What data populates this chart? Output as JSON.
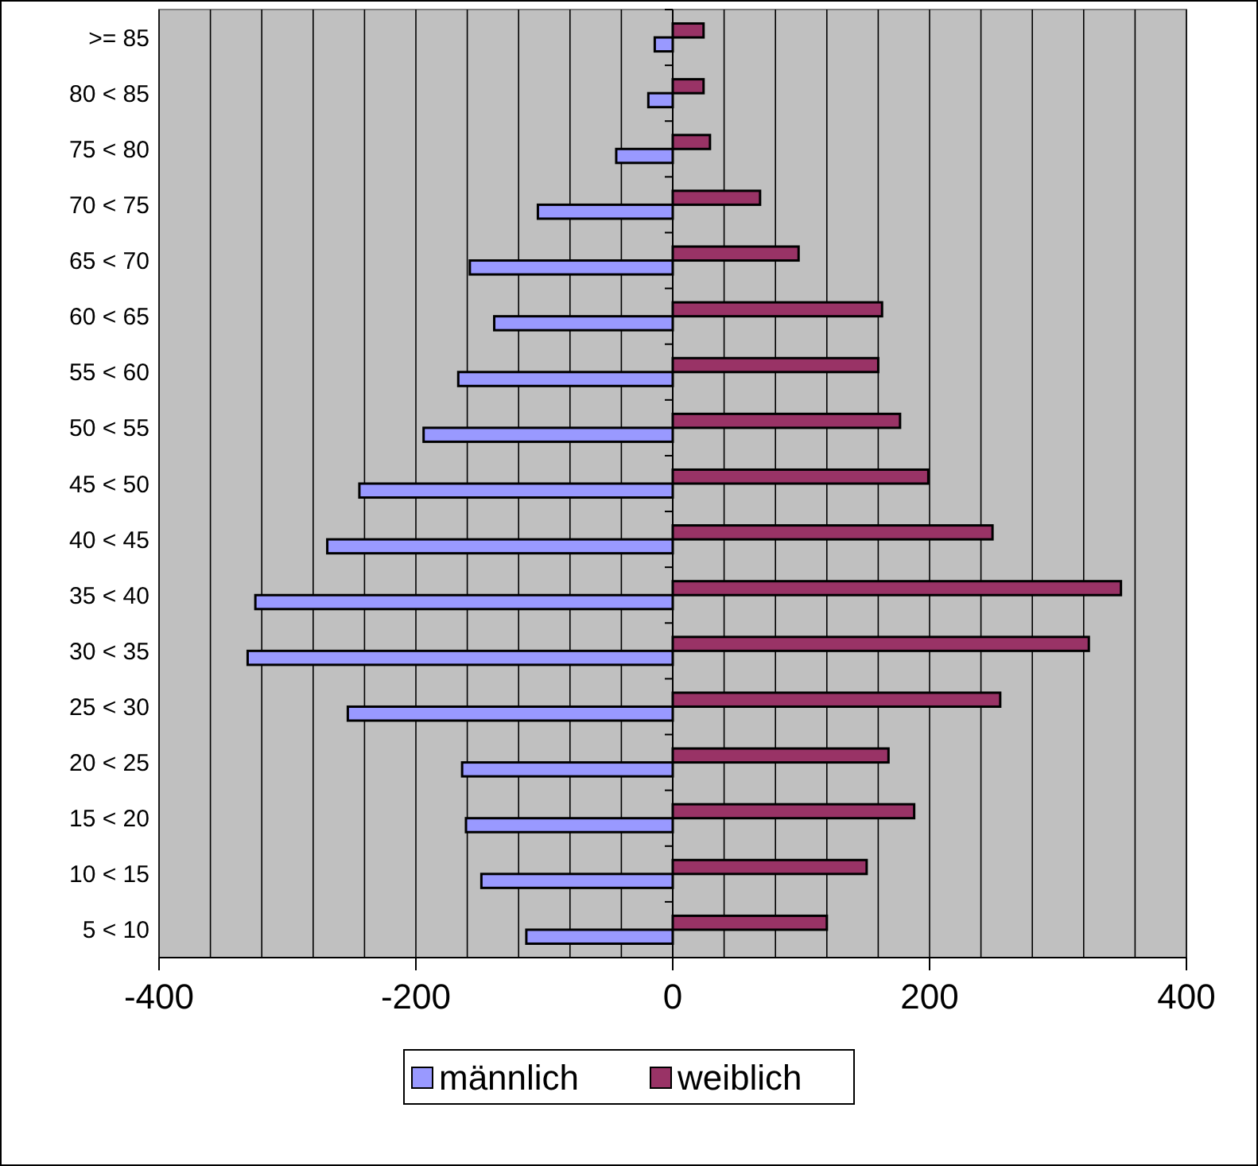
{
  "chart_data": {
    "type": "bar",
    "orientation": "horizontal",
    "categories": [
      ">= 85",
      "80 < 85",
      "75 < 80",
      "70 < 75",
      "65 < 70",
      "60 < 65",
      "55 < 60",
      "50 < 55",
      "45 < 50",
      "40 < 45",
      "35 < 40",
      "30 < 35",
      "25 < 30",
      "20 < 25",
      "15 < 20",
      "10 < 15",
      "5 < 10"
    ],
    "series": [
      {
        "name": "männlich",
        "color": "#9999ff",
        "values": [
          -14,
          -19,
          -44,
          -105,
          -158,
          -139,
          -167,
          -194,
          -244,
          -269,
          -325,
          -331,
          -253,
          -164,
          -161,
          -149,
          -114
        ]
      },
      {
        "name": "weiblich",
        "color": "#993366",
        "values": [
          24,
          24,
          29,
          68,
          98,
          163,
          160,
          177,
          199,
          249,
          349,
          324,
          255,
          168,
          188,
          151,
          120
        ]
      }
    ],
    "xlim": [
      -400,
      400
    ],
    "xticks": [
      -400,
      {
        "value": -360,
        "label": null
      },
      {
        "value": -320,
        "label": null
      },
      {
        "value": -280,
        "label": null
      },
      {
        "value": -240,
        "label": null
      },
      -200,
      {
        "value": -160,
        "label": null
      },
      {
        "value": -120,
        "label": null
      },
      {
        "value": -80,
        "label": null
      },
      {
        "value": -40,
        "label": null
      },
      0,
      {
        "value": 40,
        "label": null
      },
      {
        "value": 80,
        "label": null
      },
      {
        "value": 120,
        "label": null
      },
      {
        "value": 160,
        "label": null
      },
      200,
      {
        "value": 240,
        "label": null
      },
      {
        "value": 280,
        "label": null
      },
      {
        "value": 320,
        "label": null
      },
      {
        "value": 360,
        "label": null
      },
      400
    ],
    "grid": "x",
    "legend": "bottom"
  }
}
